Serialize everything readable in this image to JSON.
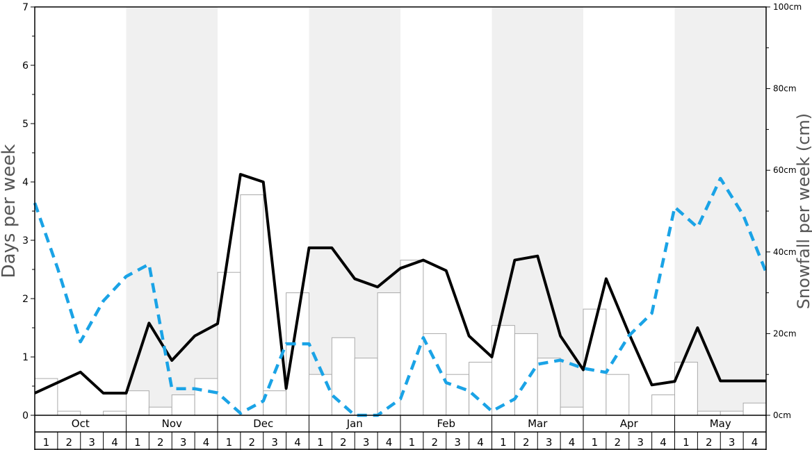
{
  "chart_data": {
    "type": "bar+line",
    "left_axis": {
      "title": "Days per week",
      "range": [
        0,
        7
      ],
      "ticks": [
        "0",
        "1",
        "2",
        "3",
        "4",
        "5",
        "6",
        "7"
      ]
    },
    "right_axis": {
      "title": "Snowfall per week (cm)",
      "range": [
        0,
        100
      ],
      "ticks": [
        "0cm",
        "20cm",
        "40cm",
        "60cm",
        "80cm",
        "100cm"
      ]
    },
    "months": [
      "Oct",
      "Nov",
      "Dec",
      "Jan",
      "Feb",
      "Mar",
      "Apr",
      "May"
    ],
    "week_labels": [
      "1",
      "2",
      "3",
      "4"
    ],
    "shaded_months": [
      "Nov",
      "Jan",
      "Mar",
      "May"
    ],
    "series": [
      {
        "kind": "bar",
        "axis": "right",
        "color": "#ffffff",
        "stroke": "#aaaaaa",
        "values": [
          9,
          1,
          0,
          1,
          6,
          2,
          5,
          9,
          35,
          54,
          6,
          30,
          10,
          19,
          14,
          30,
          38,
          20,
          10,
          13,
          22,
          20,
          14,
          2,
          26,
          10,
          0,
          5,
          13,
          1,
          1,
          3
        ]
      },
      {
        "kind": "line",
        "axis": "left",
        "color": "#000000",
        "dashed": false,
        "values": [
          0.38,
          0.56,
          0.74,
          0.38,
          0.38,
          1.58,
          0.94,
          1.36,
          1.57,
          4.13,
          4.0,
          0.46,
          2.87,
          2.87,
          2.34,
          2.2,
          2.52,
          2.66,
          2.48,
          1.36,
          1.0,
          2.66,
          2.73,
          1.36,
          0.78,
          2.34,
          1.4,
          0.52,
          0.58,
          1.5,
          0.59,
          0.59,
          0.59
        ]
      },
      {
        "kind": "line",
        "axis": "right",
        "color": "#1aa3e6",
        "dashed": true,
        "values": [
          52,
          36,
          18,
          28,
          34,
          37,
          6.5,
          6.5,
          5.5,
          0.5,
          3.5,
          17.5,
          17.5,
          5,
          0,
          0,
          4,
          19,
          8,
          6,
          1,
          4,
          12.5,
          13.5,
          11.5,
          10.5,
          19.5,
          25,
          51,
          46,
          58,
          49,
          35
        ]
      }
    ]
  },
  "colors": {
    "shade": "#f0f0f0",
    "black_line": "#000000",
    "blue_line": "#1aa3e6",
    "bar_stroke": "#aaaaaa"
  }
}
